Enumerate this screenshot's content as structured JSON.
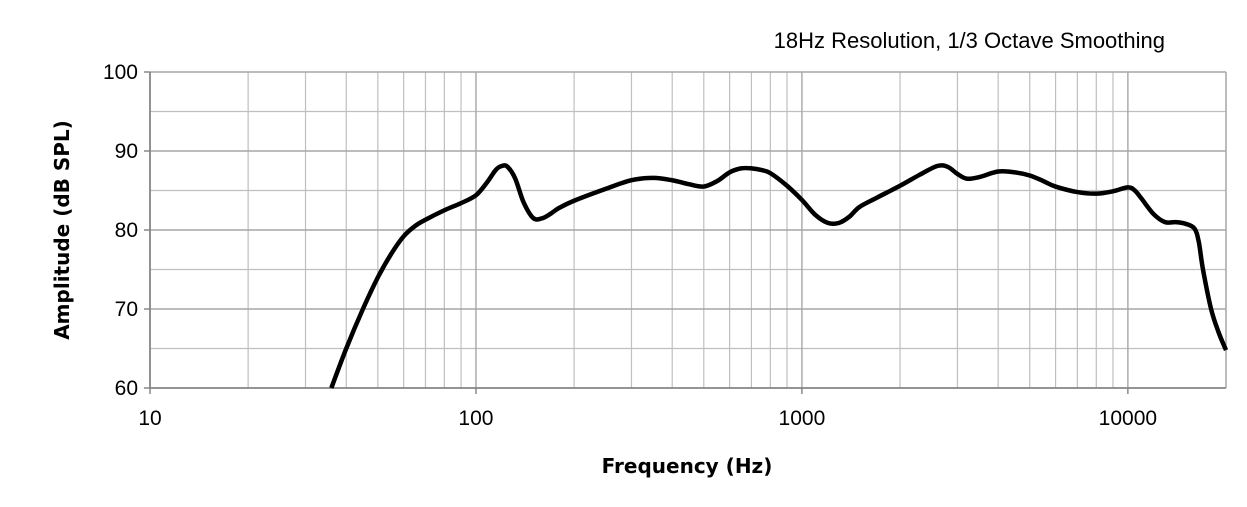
{
  "chart_data": {
    "type": "line",
    "title": "18Hz Resolution, 1/3 Octave Smoothing",
    "xlabel": "Frequency (Hz)",
    "ylabel": "Amplitude (dB SPL)",
    "x_scale": "log",
    "xlim": [
      10,
      20000
    ],
    "ylim": [
      60,
      100
    ],
    "x_ticks": [
      10,
      100,
      1000,
      10000
    ],
    "x_tick_labels": [
      "10",
      "100",
      "1000",
      "10000"
    ],
    "y_ticks": [
      60,
      70,
      80,
      90,
      100
    ],
    "y_tick_labels": [
      "60",
      "70",
      "80",
      "90",
      "100"
    ],
    "grid": {
      "major": true,
      "minor": true
    },
    "legend": "none",
    "line_color": "#000000",
    "grid_color": "#bfbfbf",
    "series": [
      {
        "x": [
          36,
          40,
          45,
          50,
          55,
          60,
          65,
          70,
          80,
          90,
          100,
          108,
          115,
          120,
          125,
          132,
          140,
          150,
          160,
          170,
          180,
          200,
          250,
          300,
          350,
          400,
          450,
          500,
          550,
          600,
          650,
          700,
          750,
          800,
          900,
          1000,
          1100,
          1200,
          1300,
          1400,
          1500,
          1700,
          2000,
          2300,
          2600,
          2800,
          3000,
          3200,
          3500,
          4000,
          4500,
          5000,
          5500,
          6000,
          7000,
          8000,
          9000,
          10000,
          10500,
          11000,
          12000,
          13000,
          14000,
          15000,
          16000,
          16500,
          17000,
          18000,
          19000,
          20000
        ],
        "y": [
          60,
          65,
          70,
          74,
          77,
          79.2,
          80.5,
          81.3,
          82.5,
          83.4,
          84.4,
          86,
          87.6,
          88.1,
          88,
          86.5,
          83.5,
          81.5,
          81.5,
          82.1,
          82.8,
          83.7,
          85.2,
          86.3,
          86.6,
          86.3,
          85.8,
          85.5,
          86.2,
          87.3,
          87.8,
          87.8,
          87.6,
          87.2,
          85.6,
          83.8,
          81.9,
          80.9,
          80.9,
          81.7,
          82.9,
          84.1,
          85.6,
          87,
          88.1,
          88,
          87.1,
          86.5,
          86.7,
          87.4,
          87.3,
          86.9,
          86.2,
          85.5,
          84.8,
          84.6,
          84.9,
          85.4,
          85,
          84,
          82,
          81,
          81,
          80.8,
          80.2,
          78.5,
          75,
          70,
          67,
          64.8
        ]
      }
    ]
  }
}
